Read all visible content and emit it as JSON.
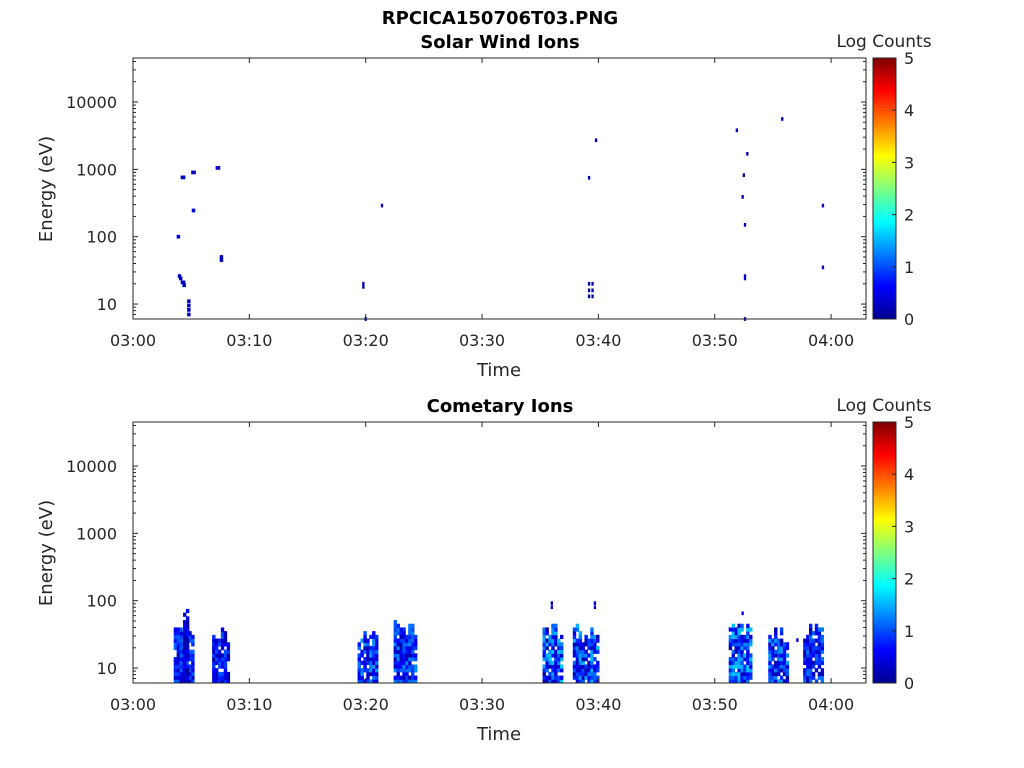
{
  "figure_title": "RPCICA150706T03.PNG",
  "chart_data": [
    {
      "type": "heatmap",
      "title": "Solar Wind Ions",
      "xlabel": "Time",
      "ylabel": "Energy (eV)",
      "x_ticks": [
        "03:00",
        "03:10",
        "03:20",
        "03:30",
        "03:40",
        "03:50",
        "04:00"
      ],
      "x_range_min": [
        0,
        63
      ],
      "y_ticks": [
        10,
        100,
        1000,
        10000
      ],
      "y_range_eV": [
        6,
        45000
      ],
      "y_scale": "log",
      "colorbar": {
        "label": "Log Counts",
        "range": [
          0,
          5
        ],
        "ticks": [
          0,
          1,
          2,
          3,
          4,
          5
        ],
        "colormap": "jet"
      },
      "cells": [
        {
          "t": 3.9,
          "e": 100,
          "v": 0.5,
          "w": 0.3
        },
        {
          "t": 4.3,
          "e": 760,
          "v": 0.3,
          "w": 0.4
        },
        {
          "t": 5.2,
          "e": 900,
          "v": 0.3,
          "w": 0.4
        },
        {
          "t": 5.2,
          "e": 245,
          "v": 0.4,
          "w": 0.3
        },
        {
          "t": 7.3,
          "e": 1050,
          "v": 0.4,
          "w": 0.4
        },
        {
          "t": 7.6,
          "e": 50,
          "v": 0.3,
          "w": 0.3
        },
        {
          "t": 7.6,
          "e": 45,
          "v": 0.3,
          "w": 0.3
        },
        {
          "t": 4.0,
          "e": 26,
          "v": 0.3,
          "w": 0.3
        },
        {
          "t": 4.1,
          "e": 24,
          "v": 0.3,
          "w": 0.3
        },
        {
          "t": 4.3,
          "e": 21,
          "v": 0.3,
          "w": 0.4
        },
        {
          "t": 4.4,
          "e": 19,
          "v": 0.3,
          "w": 0.3
        },
        {
          "t": 4.8,
          "e": 11,
          "v": 0.3,
          "w": 0.3
        },
        {
          "t": 4.8,
          "e": 9.5,
          "v": 0.3,
          "w": 0.3
        },
        {
          "t": 4.8,
          "e": 8.2,
          "v": 0.3,
          "w": 0.3
        },
        {
          "t": 4.8,
          "e": 7.0,
          "v": 0.3,
          "w": 0.3
        },
        {
          "t": 19.8,
          "e": 20,
          "v": 0.2,
          "w": 0.2
        },
        {
          "t": 19.8,
          "e": 18,
          "v": 0.2,
          "w": 0.2
        },
        {
          "t": 20.0,
          "e": 6.0,
          "v": 0.2,
          "w": 0.2
        },
        {
          "t": 21.4,
          "e": 290,
          "v": 0.3,
          "w": 0.2
        },
        {
          "t": 39.2,
          "e": 20,
          "v": 0.2,
          "w": 0.2
        },
        {
          "t": 39.2,
          "e": 16,
          "v": 0.2,
          "w": 0.2
        },
        {
          "t": 39.2,
          "e": 13,
          "v": 0.2,
          "w": 0.2
        },
        {
          "t": 39.5,
          "e": 20,
          "v": 0.2,
          "w": 0.2
        },
        {
          "t": 39.5,
          "e": 16,
          "v": 0.2,
          "w": 0.2
        },
        {
          "t": 39.5,
          "e": 13,
          "v": 0.2,
          "w": 0.2
        },
        {
          "t": 39.2,
          "e": 750,
          "v": 0.2,
          "w": 0.2
        },
        {
          "t": 39.8,
          "e": 2700,
          "v": 0.2,
          "w": 0.2
        },
        {
          "t": 51.9,
          "e": 3800,
          "v": 0.2,
          "w": 0.2
        },
        {
          "t": 52.8,
          "e": 1700,
          "v": 0.2,
          "w": 0.2
        },
        {
          "t": 52.5,
          "e": 820,
          "v": 0.2,
          "w": 0.2
        },
        {
          "t": 52.4,
          "e": 390,
          "v": 0.2,
          "w": 0.2
        },
        {
          "t": 52.6,
          "e": 150,
          "v": 0.3,
          "w": 0.2
        },
        {
          "t": 52.6,
          "e": 26,
          "v": 0.4,
          "w": 0.2
        },
        {
          "t": 52.6,
          "e": 24,
          "v": 0.4,
          "w": 0.2
        },
        {
          "t": 52.6,
          "e": 6.0,
          "v": 0.3,
          "w": 0.2
        },
        {
          "t": 55.8,
          "e": 5600,
          "v": 0.3,
          "w": 0.2
        },
        {
          "t": 59.3,
          "e": 290,
          "v": 0.3,
          "w": 0.2
        },
        {
          "t": 59.3,
          "e": 35,
          "v": 0.3,
          "w": 0.2
        }
      ]
    },
    {
      "type": "heatmap",
      "title": "Cometary Ions",
      "xlabel": "Time",
      "ylabel": "Energy (eV)",
      "x_ticks": [
        "03:00",
        "03:10",
        "03:20",
        "03:30",
        "03:40",
        "03:50",
        "04:00"
      ],
      "x_range_min": [
        0,
        63
      ],
      "y_ticks": [
        10,
        100,
        1000,
        10000
      ],
      "y_range_eV": [
        6,
        45000
      ],
      "y_scale": "log",
      "colorbar": {
        "label": "Log Counts",
        "range": [
          0,
          5
        ],
        "ticks": [
          0,
          1,
          2,
          3,
          4,
          5
        ],
        "colormap": "jet"
      },
      "clusters": [
        {
          "t0": 3.5,
          "t1": 5.1,
          "emax": 45,
          "seed": 1,
          "vmax": 1.1
        },
        {
          "t0": 4.3,
          "t1": 4.8,
          "emax": 85,
          "seed": 2,
          "vmax": 0.6
        },
        {
          "t0": 6.8,
          "t1": 8.3,
          "emax": 40,
          "seed": 3,
          "vmax": 1.0
        },
        {
          "t0": 19.3,
          "t1": 21.0,
          "emax": 35,
          "seed": 4,
          "vmax": 1.4
        },
        {
          "t0": 22.4,
          "t1": 24.2,
          "emax": 45,
          "seed": 5,
          "vmax": 1.3
        },
        {
          "t0": 35.2,
          "t1": 36.9,
          "emax": 45,
          "seed": 6,
          "vmax": 1.6
        },
        {
          "t0": 37.8,
          "t1": 39.9,
          "emax": 45,
          "seed": 7,
          "vmax": 1.5
        },
        {
          "t0": 51.2,
          "t1": 53.0,
          "emax": 45,
          "seed": 8,
          "vmax": 1.6
        },
        {
          "t0": 54.6,
          "t1": 56.2,
          "emax": 40,
          "seed": 9,
          "vmax": 1.4
        },
        {
          "t0": 57.6,
          "t1": 59.2,
          "emax": 40,
          "seed": 10,
          "vmax": 1.2
        }
      ],
      "cells": [
        {
          "t": 36.0,
          "e": 92,
          "v": 0.4,
          "w": 0.2
        },
        {
          "t": 36.0,
          "e": 80,
          "v": 0.4,
          "w": 0.2
        },
        {
          "t": 39.7,
          "e": 92,
          "v": 0.4,
          "w": 0.2
        },
        {
          "t": 39.7,
          "e": 80,
          "v": 0.4,
          "w": 0.2
        },
        {
          "t": 52.4,
          "e": 65,
          "v": 0.4,
          "w": 0.2
        },
        {
          "t": 57.1,
          "e": 26,
          "v": 0.4,
          "w": 0.2
        }
      ]
    }
  ]
}
